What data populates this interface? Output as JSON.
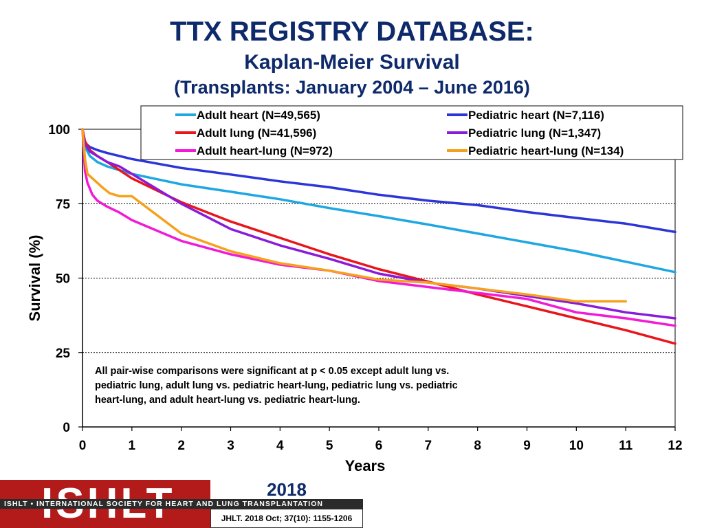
{
  "header": {
    "title": "TTX REGISTRY DATABASE:",
    "subtitle": "Kaplan-Meier Survival",
    "period": "(Transplants: January 2004 – June 2016)"
  },
  "chart_data": {
    "type": "line",
    "xlabel": "Years",
    "ylabel": "Survival (%)",
    "xlim": [
      0,
      12
    ],
    "ylim": [
      0,
      100
    ],
    "xticks": [
      0,
      1,
      2,
      3,
      4,
      5,
      6,
      7,
      8,
      9,
      10,
      11,
      12
    ],
    "yticks": [
      0,
      25,
      50,
      75,
      100
    ],
    "grid": "dashed horizontal at 25, 50, 75, 100",
    "legend_position": "top",
    "series": [
      {
        "name": "Adult heart (N=49,565)",
        "color": "#1ea7e1",
        "x": [
          0,
          0.05,
          0.15,
          0.3,
          0.5,
          1,
          2,
          3,
          4,
          5,
          6,
          7,
          8,
          9,
          10,
          11,
          12
        ],
        "y": [
          100,
          94,
          91,
          89,
          87.5,
          85,
          81.5,
          79,
          76.5,
          73.5,
          70.8,
          68,
          65,
          62,
          59,
          55.5,
          52
        ]
      },
      {
        "name": "Pediatric heart (N=7,116)",
        "color": "#2b35d8",
        "x": [
          0,
          0.05,
          0.15,
          0.3,
          0.5,
          1,
          2,
          3,
          4,
          5,
          6,
          7,
          8,
          9,
          10,
          11,
          12
        ],
        "y": [
          100,
          95.5,
          94,
          93,
          92,
          90,
          87,
          84.8,
          82.5,
          80.5,
          78,
          76,
          74.5,
          72.2,
          70.2,
          68.3,
          65.5
        ]
      },
      {
        "name": "Adult lung (N=41,596)",
        "color": "#e8161b",
        "x": [
          0,
          0.05,
          0.15,
          0.3,
          0.5,
          1,
          2,
          3,
          4,
          5,
          6,
          7,
          8,
          9,
          10,
          11,
          12
        ],
        "y": [
          100,
          96,
          93,
          91,
          89,
          83.5,
          75.5,
          69,
          63.5,
          58,
          53,
          48.8,
          44.5,
          40.5,
          36.5,
          32.5,
          28
        ]
      },
      {
        "name": "Pediatric lung (N=1,347)",
        "color": "#8b1ad9",
        "x": [
          0,
          0.05,
          0.15,
          0.3,
          0.5,
          0.75,
          1,
          2,
          3,
          4,
          5,
          6,
          7,
          8,
          9,
          10,
          11,
          12
        ],
        "y": [
          100,
          95,
          92.5,
          91,
          89,
          87.5,
          85,
          75,
          66.5,
          61,
          56.5,
          51.5,
          48.5,
          46.5,
          44,
          41.5,
          38.5,
          36.5
        ]
      },
      {
        "name": "Adult heart-lung (N=972)",
        "color": "#f21ad6",
        "x": [
          0,
          0.05,
          0.1,
          0.2,
          0.3,
          0.5,
          0.75,
          1,
          2,
          3,
          4,
          5,
          6,
          7,
          8,
          9,
          10,
          11,
          12
        ],
        "y": [
          100,
          86,
          82,
          78,
          76,
          74,
          72,
          69.5,
          62.5,
          58,
          54.5,
          52.5,
          49,
          47,
          45,
          43,
          38.5,
          36.5,
          34
        ]
      },
      {
        "name": "Pediatric heart-lung (N=134)",
        "color": "#f5a11c",
        "x": [
          0,
          0.05,
          0.1,
          0.2,
          0.3,
          0.4,
          0.55,
          0.75,
          1,
          2,
          3,
          4,
          5,
          6,
          7,
          8,
          9,
          10,
          11
        ],
        "y": [
          100,
          90,
          85,
          83.5,
          82,
          80.5,
          78.5,
          77.5,
          77.5,
          65,
          59,
          55,
          52.5,
          49.5,
          48.5,
          46.5,
          44.5,
          42.2,
          42.2
        ]
      }
    ],
    "annotation": "All pair-wise comparisons were significant at p < 0.05 except adult lung vs. pediatric lung, adult lung vs. pediatric heart-lung, pediatric lung vs. pediatric heart-lung, and adult heart-lung vs. pediatric heart-lung.",
    "annotation_lines": [
      "All pair-wise comparisons were significant at p < 0.05 except adult lung vs.",
      "pediatric lung, adult lung vs. pediatric heart-lung, pediatric lung vs. pediatric",
      "heart-lung, and adult heart-lung vs. pediatric heart-lung."
    ]
  },
  "footer": {
    "logo_text": "ISHLT",
    "logo_tagline": "ISHLT • INTERNATIONAL SOCIETY FOR HEART AND LUNG TRANSPLANTATION",
    "year": "2018",
    "citation": "JHLT. 2018 Oct; 37(10): 1155-1206"
  }
}
